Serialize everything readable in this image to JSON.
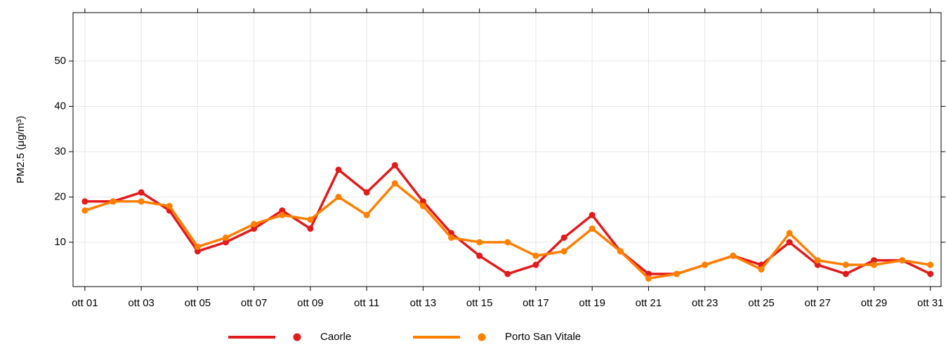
{
  "chart_data": {
    "type": "line",
    "y_label": "PM2.5 (μg/m³)",
    "x": [
      1,
      2,
      3,
      4,
      5,
      6,
      7,
      8,
      9,
      10,
      11,
      12,
      13,
      14,
      15,
      16,
      17,
      18,
      19,
      20,
      21,
      22,
      23,
      24,
      25,
      26,
      27,
      28,
      29,
      30,
      31
    ],
    "series": [
      {
        "name": "Caorle",
        "color": "#e31a1c",
        "values": [
          19,
          19,
          21,
          17,
          8,
          10,
          13,
          17,
          13,
          26,
          21,
          27,
          19,
          12,
          7,
          3,
          5,
          11,
          16,
          8,
          3,
          3,
          5,
          7,
          5,
          10,
          5,
          3,
          6,
          6,
          3
        ]
      },
      {
        "name": "Porto San Vitale",
        "color": "#ff7f00",
        "values": [
          17,
          19,
          19,
          18,
          9,
          11,
          14,
          16,
          15,
          20,
          16,
          23,
          18,
          11,
          10,
          10,
          7,
          8,
          13,
          8,
          2,
          3,
          5,
          7,
          4,
          12,
          6,
          5,
          5,
          6,
          5
        ]
      }
    ],
    "xlim": [
      0.58,
      31.38
    ],
    "xticks": [
      {
        "value": 1,
        "label": "ott 01"
      },
      {
        "value": 3,
        "label": "ott 03"
      },
      {
        "value": 5,
        "label": "ott 05"
      },
      {
        "value": 7,
        "label": "ott 07"
      },
      {
        "value": 9,
        "label": "ott 09"
      },
      {
        "value": 11,
        "label": "ott 11"
      },
      {
        "value": 13,
        "label": "ott 13"
      },
      {
        "value": 15,
        "label": "ott 15"
      },
      {
        "value": 17,
        "label": "ott 17"
      },
      {
        "value": 19,
        "label": "ott 19"
      },
      {
        "value": 21,
        "label": "ott 21"
      },
      {
        "value": 23,
        "label": "ott 23"
      },
      {
        "value": 25,
        "label": "ott 25"
      },
      {
        "value": 27,
        "label": "ott 27"
      },
      {
        "value": 29,
        "label": "ott 29"
      },
      {
        "value": 31,
        "label": "ott 31"
      }
    ],
    "ylim": [
      0.2,
      60.7
    ],
    "yticks": [
      10,
      20,
      30,
      40,
      50
    ],
    "grid": true,
    "legend": "bottom"
  }
}
